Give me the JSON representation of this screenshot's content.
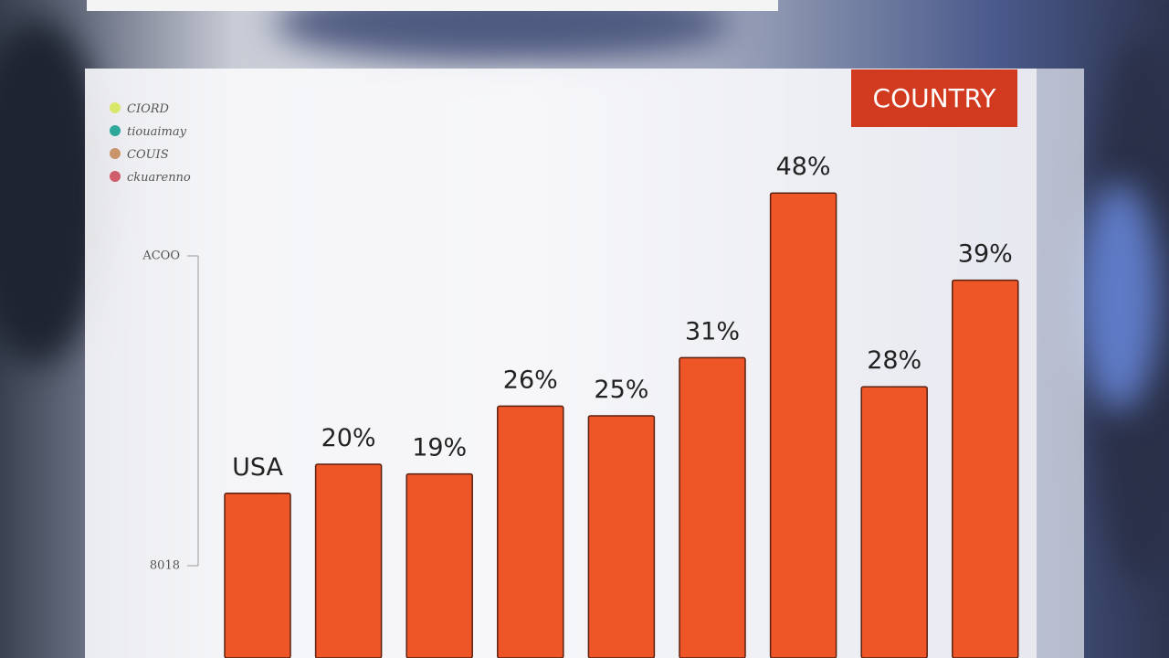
{
  "chart_data": {
    "type": "bar",
    "badge": "COUNTRY",
    "categories": [
      "USA",
      null,
      null,
      null,
      null,
      null,
      null,
      null,
      null
    ],
    "values": [
      17,
      20,
      19,
      26,
      25,
      31,
      48,
      28,
      39
    ],
    "value_labels": [
      null,
      "20%",
      "19%",
      "26%",
      "25%",
      "31%",
      "48%",
      "28%",
      "39%"
    ],
    "color": "#ee5527",
    "ylim": [
      0,
      50
    ],
    "y_axis_texts": [
      "ACOO",
      "8018"
    ],
    "legend": [
      {
        "name": "CIORD",
        "color": "#d9e86a"
      },
      {
        "name": "tiouaimay",
        "color": "#2fa89c"
      },
      {
        "name": "COUIS",
        "color": "#c9946a"
      },
      {
        "name": "ckuarenno",
        "color": "#cf5d6a"
      }
    ]
  }
}
